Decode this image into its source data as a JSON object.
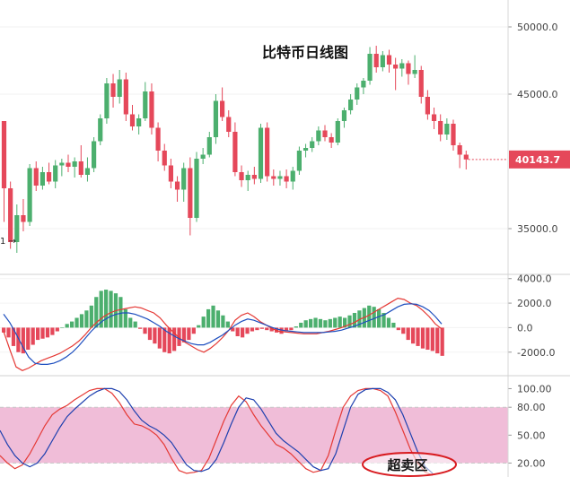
{
  "chart_data": [
    {
      "type": "candlestick",
      "title": "比特币日线图",
      "ylim": [
        32000,
        52000
      ],
      "yticks": [
        {
          "value": 50000,
          "label": "50000.0"
        },
        {
          "value": 45000,
          "label": "45000.0"
        },
        {
          "value": 35000,
          "label": "35000.0"
        }
      ],
      "last_price": {
        "value": 40143.7,
        "label": "40143.7",
        "color": "#e5485a"
      },
      "side_label": "1 →",
      "up_color": "#4caf6e",
      "down_color": "#e5485a",
      "candles": [
        [
          43000,
          43000,
          35500,
          38000
        ],
        [
          38000,
          38500,
          33500,
          34000
        ],
        [
          34000,
          36800,
          33200,
          36000
        ],
        [
          36000,
          37200,
          34800,
          35500
        ],
        [
          35500,
          39800,
          35200,
          39500
        ],
        [
          39500,
          40000,
          37800,
          38200
        ],
        [
          38200,
          39600,
          37900,
          39200
        ],
        [
          39200,
          39900,
          38300,
          38500
        ],
        [
          38500,
          40100,
          38000,
          39700
        ],
        [
          39700,
          40200,
          38900,
          39900
        ],
        [
          39900,
          40500,
          39200,
          39600
        ],
        [
          39600,
          40300,
          38800,
          40000
        ],
        [
          40000,
          41200,
          38800,
          39000
        ],
        [
          39000,
          40300,
          38500,
          39500
        ],
        [
          39500,
          41800,
          39200,
          41500
        ],
        [
          41500,
          43500,
          41200,
          43200
        ],
        [
          43200,
          46200,
          42800,
          45800
        ],
        [
          45800,
          46500,
          44000,
          44800
        ],
        [
          44800,
          46800,
          44300,
          46100
        ],
        [
          46100,
          46600,
          43000,
          43500
        ],
        [
          43500,
          44200,
          42300,
          42600
        ],
        [
          42600,
          43500,
          42000,
          43200
        ],
        [
          43200,
          45900,
          43000,
          45200
        ],
        [
          45200,
          45800,
          42000,
          42500
        ],
        [
          42500,
          42900,
          40000,
          40800
        ],
        [
          40800,
          41300,
          39300,
          39700
        ],
        [
          39700,
          40200,
          38000,
          38500
        ],
        [
          38500,
          38900,
          37000,
          37900
        ],
        [
          37900,
          39900,
          37000,
          39500
        ],
        [
          39500,
          40300,
          34500,
          35800
        ],
        [
          35800,
          40700,
          35500,
          40200
        ],
        [
          40200,
          41000,
          39800,
          40500
        ],
        [
          40500,
          42200,
          40300,
          41800
        ],
        [
          41800,
          45000,
          41300,
          44500
        ],
        [
          44500,
          45500,
          43000,
          43300
        ],
        [
          43300,
          43800,
          41800,
          42200
        ],
        [
          42200,
          42900,
          38900,
          39200
        ],
        [
          39200,
          39700,
          38100,
          38600
        ],
        [
          38600,
          39300,
          37800,
          39000
        ],
        [
          39000,
          39600,
          38300,
          38700
        ],
        [
          38700,
          42800,
          38400,
          42500
        ],
        [
          42500,
          42900,
          38500,
          38900
        ],
        [
          38900,
          39400,
          38200,
          38700
        ],
        [
          38700,
          39300,
          38200,
          38900
        ],
        [
          38900,
          39400,
          38000,
          38500
        ],
        [
          38500,
          39600,
          37900,
          39300
        ],
        [
          39300,
          41100,
          39000,
          40800
        ],
        [
          40800,
          41300,
          40300,
          41000
        ],
        [
          41000,
          41800,
          40700,
          41500
        ],
        [
          41500,
          42600,
          41200,
          42300
        ],
        [
          42300,
          42700,
          41500,
          41800
        ],
        [
          41800,
          42100,
          41000,
          41400
        ],
        [
          41400,
          43200,
          41200,
          43000
        ],
        [
          43000,
          44000,
          42500,
          43800
        ],
        [
          43800,
          45000,
          43500,
          44600
        ],
        [
          44600,
          45800,
          44200,
          45500
        ],
        [
          45500,
          46200,
          45000,
          46000
        ],
        [
          46000,
          48500,
          45700,
          48000
        ],
        [
          48000,
          48600,
          46600,
          47000
        ],
        [
          47000,
          48200,
          46700,
          47900
        ],
        [
          47900,
          48300,
          46600,
          47200
        ],
        [
          47200,
          47700,
          45300,
          46900
        ],
        [
          46900,
          47600,
          46300,
          47300
        ],
        [
          47300,
          47500,
          45700,
          46500
        ],
        [
          46500,
          47900,
          46200,
          46800
        ],
        [
          46800,
          47100,
          44300,
          44800
        ],
        [
          44800,
          45300,
          43100,
          43500
        ],
        [
          43500,
          44000,
          42400,
          43000
        ],
        [
          43000,
          43500,
          41500,
          42000
        ],
        [
          42000,
          43200,
          41600,
          42800
        ],
        [
          42800,
          43100,
          40800,
          41200
        ],
        [
          41200,
          41400,
          39500,
          40500
        ],
        [
          40500,
          40800,
          39400,
          40143.7
        ]
      ]
    },
    {
      "type": "macd",
      "ylim": [
        -3700,
        4200
      ],
      "yticks": [
        {
          "value": 4000,
          "label": "4000.0"
        },
        {
          "value": 2000,
          "label": "2000.0"
        },
        {
          "value": 0,
          "label": "0.0"
        },
        {
          "value": -2000,
          "label": "-2000.0"
        }
      ],
      "histogram": [
        -400,
        -800,
        -1500,
        -2000,
        -2100,
        -1800,
        -1400,
        -1000,
        -900,
        -800,
        -600,
        -300,
        0,
        300,
        500,
        800,
        1100,
        1400,
        1800,
        2500,
        3000,
        3100,
        3000,
        2800,
        2500,
        1500,
        800,
        500,
        -100,
        -500,
        -1000,
        -1300,
        -1700,
        -2000,
        -2100,
        -1900,
        -1500,
        -1200,
        -1000,
        -500,
        200,
        900,
        1500,
        1800,
        1400,
        1000,
        500,
        -300,
        -700,
        -800,
        -500,
        -300,
        -200,
        -100,
        -200,
        -300,
        -400,
        -500,
        -300,
        -200,
        100,
        400,
        600,
        700,
        800,
        700,
        600,
        700,
        800,
        900,
        800,
        1000,
        1200,
        1400,
        1600,
        1800,
        1700,
        1500,
        1200,
        800,
        400,
        -200,
        -500,
        -1000,
        -1300,
        -1500,
        -1700,
        -1800,
        -1900,
        -2100,
        -2300
      ],
      "series": [
        {
          "color": "#e53935",
          "values": [
            -300,
            -1800,
            -3200,
            -3500,
            -3300,
            -3000,
            -2700,
            -2500,
            -2300,
            -2100,
            -1800,
            -1500,
            -1100,
            -600,
            0,
            500,
            900,
            1200,
            1400,
            1500,
            1600,
            1700,
            1600,
            1400,
            1200,
            800,
            200,
            -300,
            -800,
            -1200,
            -1500,
            -1800,
            -2000,
            -1700,
            -1300,
            -800,
            -200,
            600,
            1000,
            1200,
            900,
            500,
            200,
            -100,
            -300,
            -350,
            -400,
            -450,
            -500,
            -500,
            -500,
            -400,
            -300,
            -150,
            0,
            200,
            400,
            700,
            900,
            1200,
            1500,
            1800,
            2100,
            2400,
            2300,
            2000,
            1800,
            1400,
            900,
            300,
            -100
          ]
        },
        {
          "color": "#1e4fbf",
          "values": [
            1100,
            400,
            -500,
            -1500,
            -2400,
            -2900,
            -3000,
            -3000,
            -2900,
            -2700,
            -2400,
            -2000,
            -1500,
            -900,
            -300,
            200,
            600,
            900,
            1100,
            1200,
            1200,
            1100,
            900,
            700,
            400,
            100,
            -300,
            -600,
            -900,
            -1100,
            -1300,
            -1400,
            -1400,
            -1200,
            -900,
            -600,
            -200,
            200,
            500,
            700,
            600,
            400,
            200,
            0,
            -150,
            -250,
            -300,
            -350,
            -400,
            -400,
            -400,
            -400,
            -350,
            -300,
            -200,
            -50,
            100,
            300,
            500,
            700,
            900,
            1100,
            1400,
            1700,
            1900,
            1950,
            1900,
            1700,
            1400,
            900,
            300
          ]
        }
      ]
    },
    {
      "type": "stochastic",
      "ylim": [
        5,
        112
      ],
      "yticks": [
        {
          "value": 100,
          "label": "100.00"
        },
        {
          "value": 80,
          "label": "80.00"
        },
        {
          "value": 50,
          "label": "50.00"
        },
        {
          "value": 20,
          "label": "20.00"
        }
      ],
      "band": [
        20,
        80
      ],
      "band_color": "#f0bdd8",
      "annotation": "超卖区",
      "annotation_color": "#d81b20",
      "series": [
        {
          "color": "#e53935",
          "values": [
            28,
            20,
            14,
            18,
            30,
            45,
            60,
            72,
            78,
            82,
            88,
            93,
            98,
            100,
            100,
            95,
            85,
            72,
            62,
            60,
            56,
            50,
            40,
            25,
            12,
            9,
            10,
            12,
            25,
            45,
            65,
            82,
            92,
            86,
            72,
            60,
            50,
            40,
            36,
            30,
            22,
            14,
            10,
            12,
            28,
            55,
            80,
            92,
            98,
            100,
            100,
            98,
            92,
            75,
            55,
            35,
            20,
            10,
            7
          ]
        },
        {
          "color": "#1e40af",
          "values": [
            55,
            40,
            28,
            20,
            16,
            20,
            30,
            44,
            58,
            70,
            78,
            85,
            92,
            97,
            100,
            100,
            97,
            88,
            76,
            66,
            60,
            56,
            50,
            42,
            30,
            18,
            12,
            11,
            14,
            24,
            42,
            62,
            80,
            90,
            88,
            78,
            65,
            52,
            44,
            38,
            32,
            24,
            16,
            12,
            14,
            30,
            55,
            80,
            94,
            99,
            100,
            100,
            96,
            88,
            72,
            52,
            32,
            16,
            9
          ]
        }
      ]
    }
  ]
}
